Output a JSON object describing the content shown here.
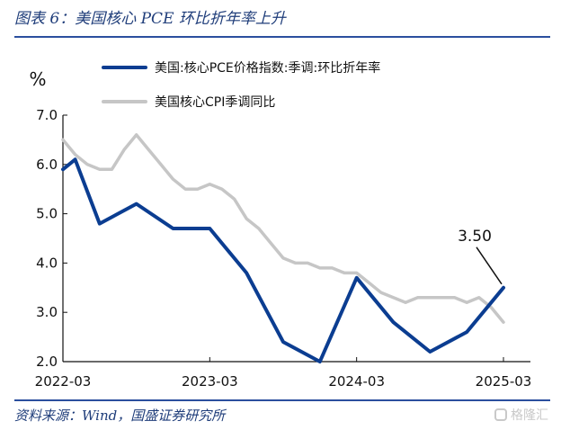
{
  "header": {
    "title": "图表 6：美国核心 PCE 环比折年率上升"
  },
  "source": {
    "text": "资料来源：Wind，国盛证券研究所"
  },
  "watermark": {
    "text": "格隆汇",
    "icon": "brand-logo-icon"
  },
  "chart_data": {
    "type": "line",
    "ylabel": "%",
    "ylim": [
      2.0,
      7.0
    ],
    "y_ticks": [
      "7.0",
      "6.0",
      "5.0",
      "4.0",
      "3.0",
      "2.0"
    ],
    "x_range": [
      "2022-03",
      "2025-03"
    ],
    "x_ticks": [
      "2022-03",
      "2023-03",
      "2024-03",
      "2025-03"
    ],
    "grid": false,
    "legend_position": "top-center",
    "series": [
      {
        "name": "美国:核心PCE价格指数:季调:环比折年率",
        "color": "#0b3d91",
        "points": [
          {
            "x": "2022-03",
            "y": 5.9
          },
          {
            "x": "2022-04",
            "y": 6.1
          },
          {
            "x": "2022-06",
            "y": 4.8
          },
          {
            "x": "2022-09",
            "y": 5.2
          },
          {
            "x": "2022-12",
            "y": 4.7
          },
          {
            "x": "2023-03",
            "y": 4.7
          },
          {
            "x": "2023-06",
            "y": 3.8
          },
          {
            "x": "2023-09",
            "y": 2.4
          },
          {
            "x": "2023-12",
            "y": 2.0
          },
          {
            "x": "2024-03",
            "y": 3.7
          },
          {
            "x": "2024-06",
            "y": 2.8
          },
          {
            "x": "2024-09",
            "y": 2.2
          },
          {
            "x": "2024-12",
            "y": 2.6
          },
          {
            "x": "2025-03",
            "y": 3.5
          }
        ]
      },
      {
        "name": "美国核心CPI季调同比",
        "color": "#c6c6c6",
        "points": [
          {
            "x": "2022-03",
            "y": 6.5
          },
          {
            "x": "2022-04",
            "y": 6.2
          },
          {
            "x": "2022-05",
            "y": 6.0
          },
          {
            "x": "2022-06",
            "y": 5.9
          },
          {
            "x": "2022-07",
            "y": 5.9
          },
          {
            "x": "2022-08",
            "y": 6.3
          },
          {
            "x": "2022-09",
            "y": 6.6
          },
          {
            "x": "2022-10",
            "y": 6.3
          },
          {
            "x": "2022-11",
            "y": 6.0
          },
          {
            "x": "2022-12",
            "y": 5.7
          },
          {
            "x": "2023-01",
            "y": 5.5
          },
          {
            "x": "2023-02",
            "y": 5.5
          },
          {
            "x": "2023-03",
            "y": 5.6
          },
          {
            "x": "2023-04",
            "y": 5.5
          },
          {
            "x": "2023-05",
            "y": 5.3
          },
          {
            "x": "2023-06",
            "y": 4.9
          },
          {
            "x": "2023-07",
            "y": 4.7
          },
          {
            "x": "2023-08",
            "y": 4.4
          },
          {
            "x": "2023-09",
            "y": 4.1
          },
          {
            "x": "2023-10",
            "y": 4.0
          },
          {
            "x": "2023-11",
            "y": 4.0
          },
          {
            "x": "2023-12",
            "y": 3.9
          },
          {
            "x": "2024-01",
            "y": 3.9
          },
          {
            "x": "2024-02",
            "y": 3.8
          },
          {
            "x": "2024-03",
            "y": 3.8
          },
          {
            "x": "2024-04",
            "y": 3.6
          },
          {
            "x": "2024-05",
            "y": 3.4
          },
          {
            "x": "2024-06",
            "y": 3.3
          },
          {
            "x": "2024-07",
            "y": 3.2
          },
          {
            "x": "2024-08",
            "y": 3.3
          },
          {
            "x": "2024-09",
            "y": 3.3
          },
          {
            "x": "2024-10",
            "y": 3.3
          },
          {
            "x": "2024-11",
            "y": 3.3
          },
          {
            "x": "2024-12",
            "y": 3.2
          },
          {
            "x": "2025-01",
            "y": 3.3
          },
          {
            "x": "2025-02",
            "y": 3.1
          },
          {
            "x": "2025-03",
            "y": 2.8
          }
        ]
      }
    ],
    "annotations": [
      {
        "text": "3.50",
        "x": "2025-03",
        "y": 3.5,
        "series": "美国:核心PCE价格指数:季调:环比折年率"
      }
    ]
  }
}
